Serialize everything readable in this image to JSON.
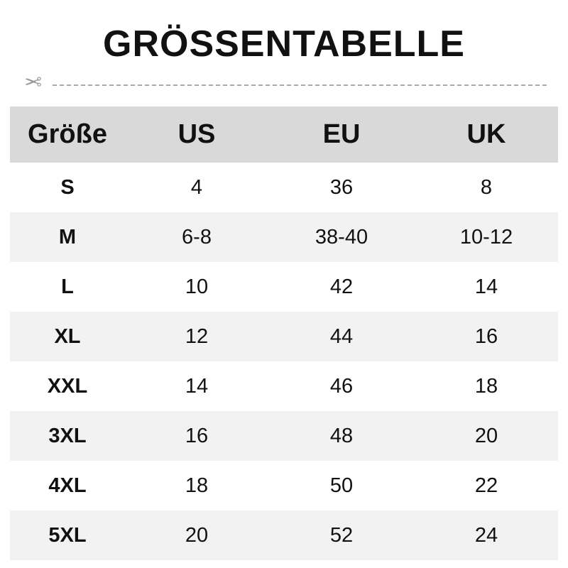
{
  "title": "GRÖSSENTABELLE",
  "cut_icon": "scissors-icon",
  "header": [
    "Größe",
    "US",
    "EU",
    "UK"
  ],
  "rows": [
    [
      "S",
      "4",
      "36",
      "8"
    ],
    [
      "M",
      "6-8",
      "38-40",
      "10-12"
    ],
    [
      "L",
      "10",
      "42",
      "14"
    ],
    [
      "XL",
      "12",
      "44",
      "16"
    ],
    [
      "XXL",
      "14",
      "46",
      "18"
    ],
    [
      "3XL",
      "16",
      "48",
      "20"
    ],
    [
      "4XL",
      "18",
      "50",
      "22"
    ],
    [
      "5XL",
      "20",
      "52",
      "24"
    ]
  ],
  "colors": {
    "header_bg": "#d9d9d9",
    "stripe_bg": "#f2f2f2",
    "cutline": "#aaaaaa"
  }
}
